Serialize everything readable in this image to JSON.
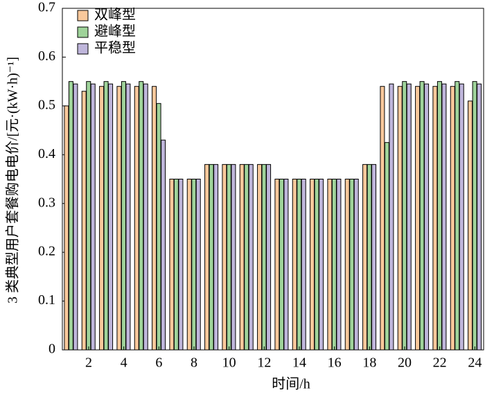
{
  "chart_data": {
    "type": "bar",
    "x_label": "时间/h",
    "y_label": "3 类典型用户套餐购电电价/[元·(kW·h)⁻¹]",
    "categories": [
      null,
      "2",
      null,
      "4",
      null,
      "6",
      null,
      "8",
      null,
      "10",
      null,
      "12",
      null,
      "14",
      null,
      "16",
      null,
      "18",
      null,
      "20",
      null,
      "22",
      null,
      "24"
    ],
    "series": [
      {
        "name": "双峰型",
        "color": "#f9c89b",
        "values": [
          0.5,
          0.53,
          0.54,
          0.54,
          0.54,
          0.54,
          0.35,
          0.35,
          0.38,
          0.38,
          0.38,
          0.38,
          0.35,
          0.35,
          0.35,
          0.35,
          0.35,
          0.38,
          0.54,
          0.54,
          0.54,
          0.54,
          0.54,
          0.51
        ]
      },
      {
        "name": "避峰型",
        "color": "#9fd39a",
        "values": [
          0.55,
          0.55,
          0.55,
          0.55,
          0.55,
          0.505,
          0.35,
          0.35,
          0.38,
          0.38,
          0.38,
          0.38,
          0.35,
          0.35,
          0.35,
          0.35,
          0.35,
          0.38,
          0.425,
          0.55,
          0.55,
          0.55,
          0.55,
          0.55
        ]
      },
      {
        "name": "平稳型",
        "color": "#bfb6db",
        "values": [
          0.545,
          0.545,
          0.545,
          0.545,
          0.545,
          0.43,
          0.35,
          0.35,
          0.38,
          0.38,
          0.38,
          0.38,
          0.35,
          0.35,
          0.35,
          0.35,
          0.35,
          0.38,
          0.545,
          0.545,
          0.545,
          0.545,
          0.545,
          0.545
        ]
      }
    ],
    "ylim": [
      0,
      0.7
    ],
    "yticks": [
      0,
      0.1,
      0.2,
      0.3,
      0.4,
      0.5,
      0.6,
      0.7
    ],
    "legend": "upper-left"
  }
}
